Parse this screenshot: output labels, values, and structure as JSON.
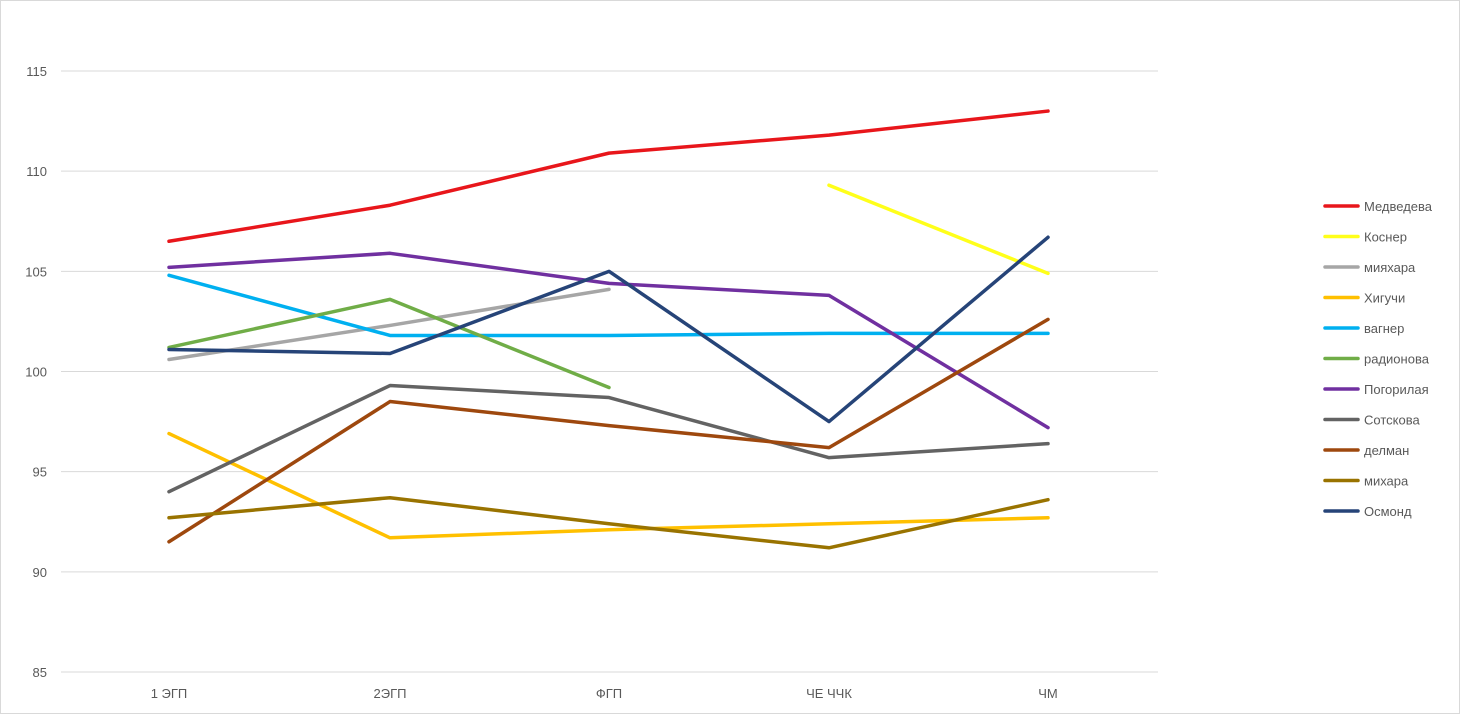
{
  "chart_data": {
    "type": "line",
    "title": "",
    "xlabel": "",
    "ylabel": "",
    "categories": [
      "1 ЭГП",
      "2ЭГП",
      "ФГП",
      "ЧЕ ЧЧК",
      "ЧМ"
    ],
    "ylim": [
      85,
      115
    ],
    "yticks": [
      85,
      90,
      95,
      100,
      105,
      110,
      115
    ],
    "grid": "horizontal",
    "legend_position": "right",
    "series": [
      {
        "name": "Медведева",
        "color": "#e8161b",
        "values": [
          106.5,
          108.3,
          110.9,
          111.8,
          113.0
        ]
      },
      {
        "name": "Коснер",
        "color": "#ffff1a",
        "values": [
          null,
          null,
          null,
          109.3,
          104.9
        ]
      },
      {
        "name": "мияхара",
        "color": "#a6a6a6",
        "values": [
          100.6,
          102.3,
          104.1,
          null,
          null
        ]
      },
      {
        "name": "Хигучи",
        "color": "#ffc000",
        "values": [
          96.9,
          91.7,
          92.1,
          92.4,
          92.7
        ]
      },
      {
        "name": "вагнер",
        "color": "#00b0f0",
        "values": [
          104.8,
          101.8,
          101.8,
          101.9,
          101.9
        ]
      },
      {
        "name": "радионова",
        "color": "#70ad47",
        "values": [
          101.2,
          103.6,
          99.2,
          null,
          null
        ]
      },
      {
        "name": "Погорилая",
        "color": "#7030a0",
        "values": [
          105.2,
          105.9,
          104.4,
          103.8,
          97.2
        ]
      },
      {
        "name": "Сотскова",
        "color": "#636363",
        "values": [
          94.0,
          99.3,
          98.7,
          95.7,
          96.4
        ]
      },
      {
        "name": "делман",
        "color": "#9e480e",
        "values": [
          91.5,
          98.5,
          97.3,
          96.2,
          102.6
        ]
      },
      {
        "name": "михара",
        "color": "#997300",
        "values": [
          92.7,
          93.7,
          92.4,
          91.2,
          93.6
        ]
      },
      {
        "name": "Осмонд",
        "color": "#264478",
        "values": [
          101.1,
          100.9,
          105.0,
          97.5,
          106.7
        ]
      }
    ]
  }
}
